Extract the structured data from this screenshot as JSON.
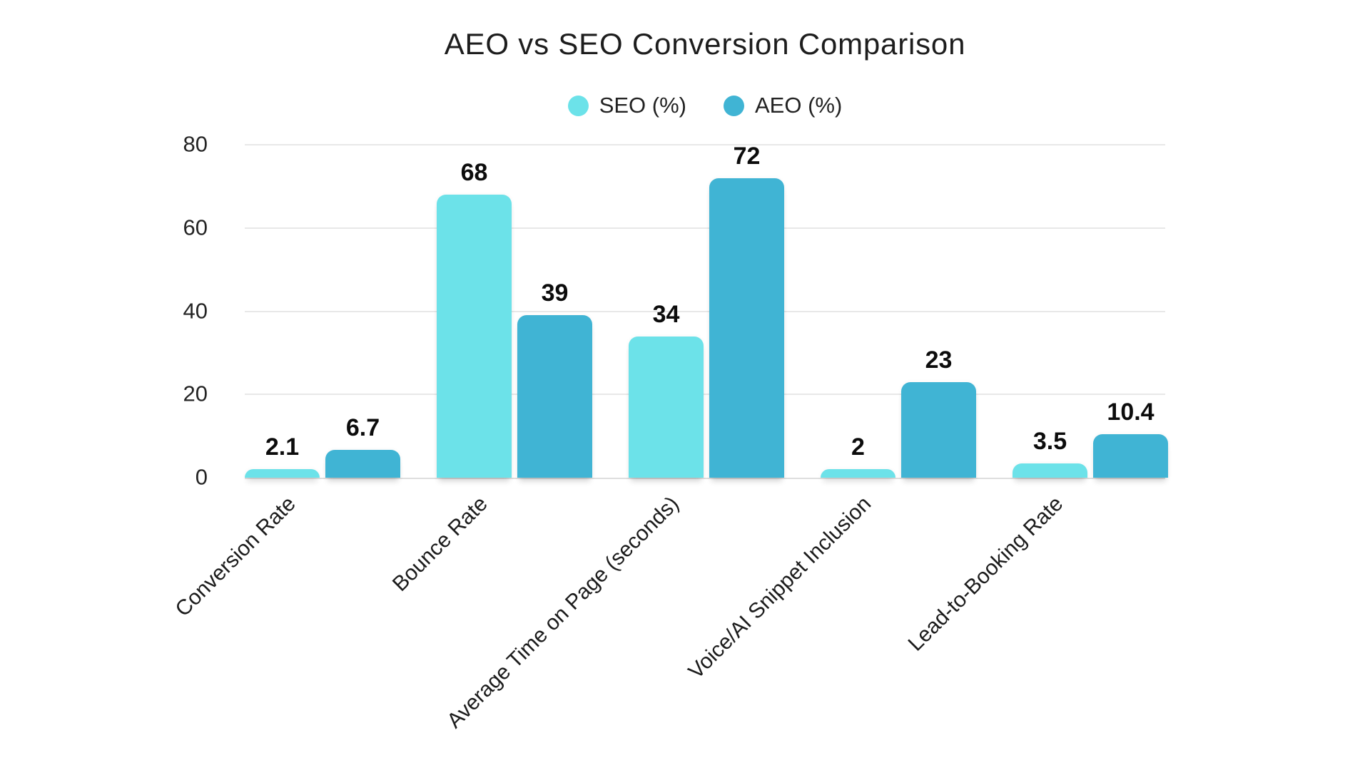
{
  "title": "AEO vs SEO Conversion Comparison",
  "colors": {
    "seo_accent": "#6CE2E9",
    "aeo_accent": "#40B4D4",
    "gridline": "#e8e8e8",
    "axis_line": "#dedede",
    "text": "#1c1c1c"
  },
  "chart_data": {
    "type": "bar",
    "title": "AEO vs SEO Conversion Comparison",
    "categories": [
      "Conversion Rate",
      "Bounce Rate",
      "Average Time on Page (seconds)",
      "Voice/AI Snippet Inclusion",
      "Lead-to-Booking Rate"
    ],
    "series": [
      {
        "name": "SEO (%)",
        "color": "#6CE2E9",
        "values": [
          2.1,
          68,
          34,
          2,
          3.5
        ]
      },
      {
        "name": "AEO (%)",
        "color": "#40B4D4",
        "values": [
          6.7,
          39,
          72,
          23,
          10.4
        ]
      }
    ],
    "xlabel": "",
    "ylabel": "",
    "ylim": [
      0,
      80
    ],
    "yticks": [
      0,
      20,
      40,
      60,
      80
    ],
    "grid": true,
    "legend_position": "top-center",
    "value_labels": true,
    "bar_corner_style": "rounded-top",
    "x_tick_rotation_deg": -45
  }
}
